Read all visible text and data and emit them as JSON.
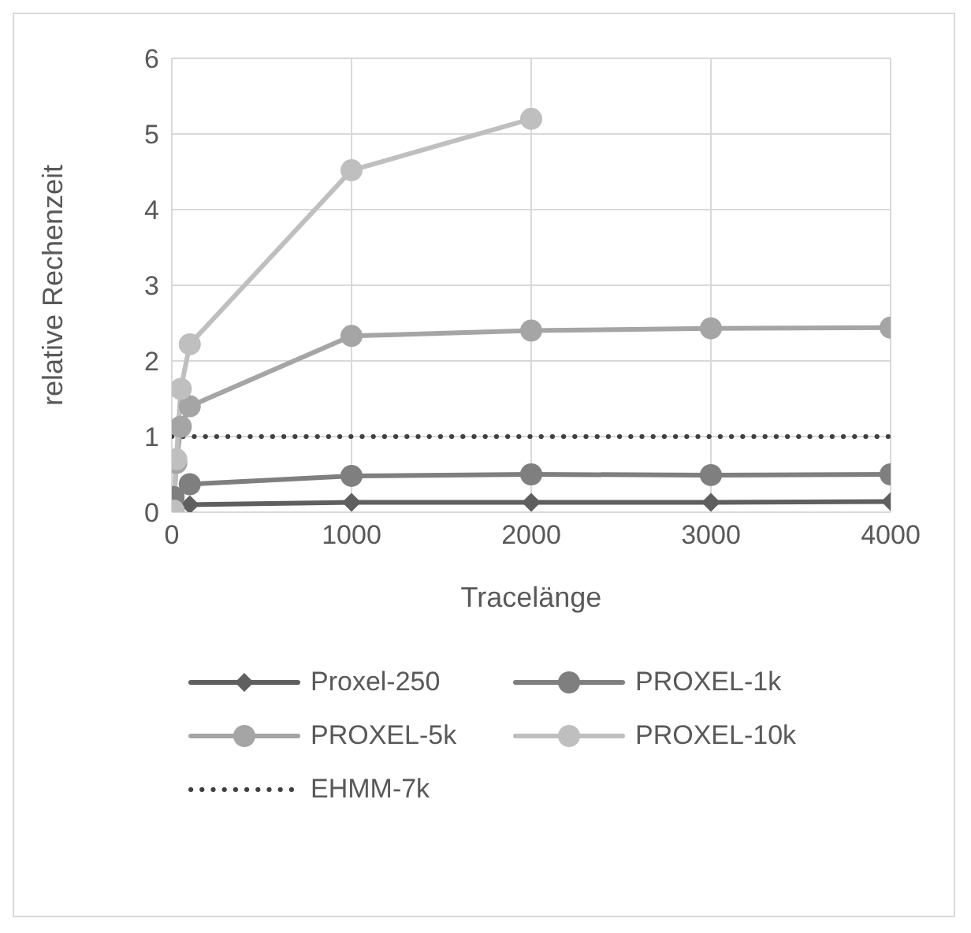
{
  "chart_data": {
    "type": "line",
    "xlabel": "Tracelänge",
    "ylabel": "relative Rechenzeit",
    "xlim": [
      0,
      4000
    ],
    "xticks": [
      0,
      1000,
      2000,
      3000,
      4000
    ],
    "ylim": [
      0,
      6
    ],
    "yticks": [
      0,
      1,
      2,
      3,
      4,
      5,
      6
    ],
    "grid": true,
    "legend": "bottom",
    "series": [
      {
        "name": "Proxel-250",
        "color": "#5f5f5f",
        "marker": "diamond",
        "x": [
          10,
          100,
          1000,
          2000,
          3000,
          4000
        ],
        "values": [
          0.03,
          0.1,
          0.13,
          0.13,
          0.13,
          0.14
        ]
      },
      {
        "name": "PROXEL-1k",
        "color": "#7f7f7f",
        "marker": "circle",
        "x": [
          10,
          100,
          1000,
          2000,
          3000,
          4000
        ],
        "values": [
          0.2,
          0.37,
          0.48,
          0.5,
          0.49,
          0.5
        ]
      },
      {
        "name": "PROXEL-5k",
        "color": "#a5a5a5",
        "marker": "circle",
        "x": [
          10,
          25,
          50,
          100,
          1000,
          2000,
          3000,
          4000
        ],
        "values": [
          0.02,
          0.65,
          1.13,
          1.4,
          2.33,
          2.4,
          2.43,
          2.44
        ]
      },
      {
        "name": "PROXEL-10k",
        "color": "#bfbfbf",
        "marker": "circle",
        "x": [
          10,
          25,
          50,
          100,
          1000,
          2000
        ],
        "values": [
          0.02,
          0.7,
          1.63,
          2.22,
          4.52,
          5.2
        ]
      },
      {
        "name": "EHMM-7k",
        "color": "#404040",
        "marker": "none",
        "line_style": "dotted",
        "x": [
          0,
          4000
        ],
        "values": [
          1,
          1
        ]
      }
    ]
  }
}
